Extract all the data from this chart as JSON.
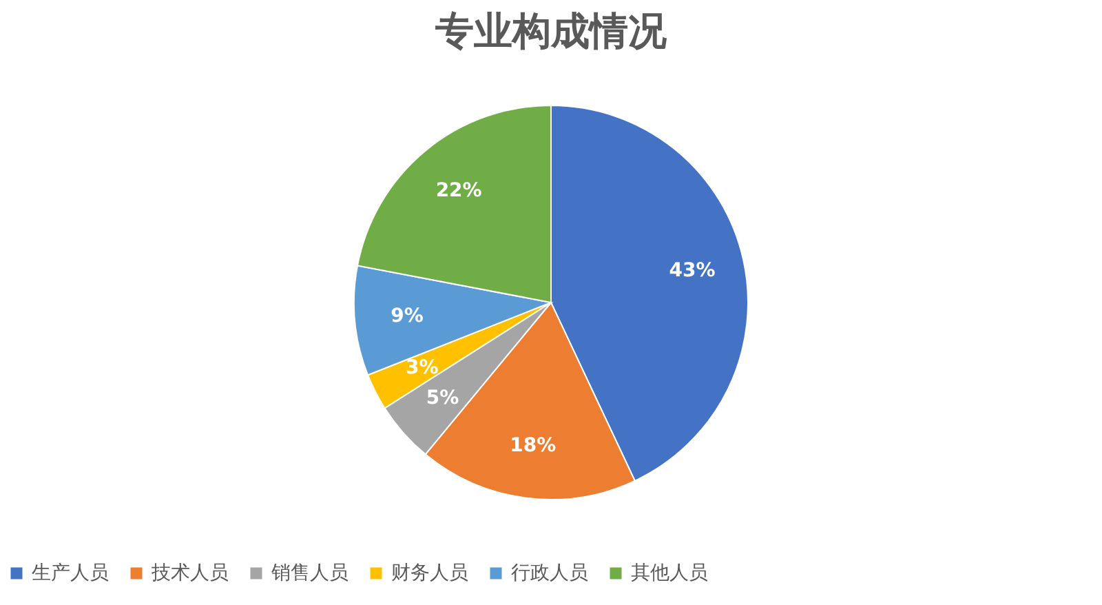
{
  "chart_data": {
    "type": "pie",
    "title": "专业构成情况",
    "categories": [
      "生产人员",
      "技术人员",
      "销售人员",
      "财务人员",
      "行政人员",
      "其他人员"
    ],
    "values": [
      43,
      18,
      5,
      3,
      9,
      22
    ],
    "colors": [
      "#4472c4",
      "#ed7d31",
      "#a5a5a5",
      "#ffc000",
      "#5b9bd5",
      "#70ad47"
    ],
    "value_labels": [
      "43%",
      "18%",
      "5%",
      "3%",
      "9%",
      "22%"
    ],
    "legend": "bottom"
  }
}
